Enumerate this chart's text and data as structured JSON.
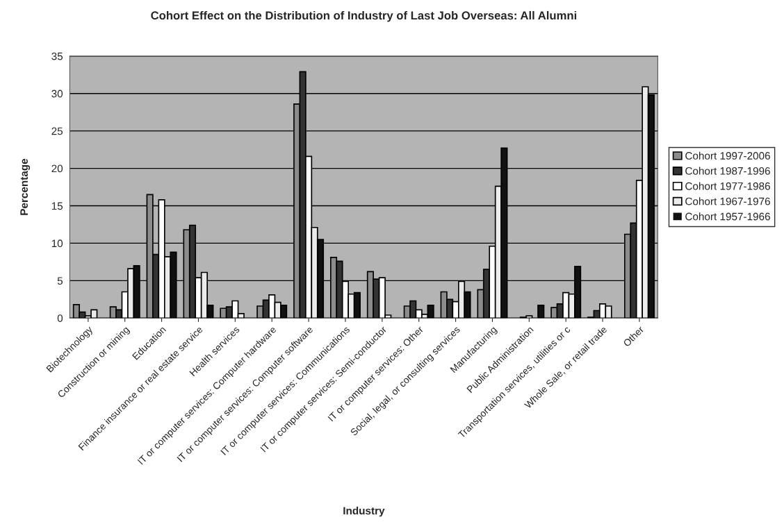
{
  "chart_data": {
    "type": "bar",
    "title": "Cohort Effect on the Distribution of Industry of Last Job Overseas: All Alumni",
    "xlabel": "Industry",
    "ylabel": "Percentage",
    "categories": [
      "Biotechnology",
      "Construction or mining",
      "Education",
      "Finance insurance or real estate service",
      "Health services",
      "IT or computer services: Computer hardware",
      "IT or computer services: Computer software",
      "IT or computer services: Communications",
      "IT or computer services: Semi-conductor",
      "IT or computer services: Other",
      "Social, legal, or consulting services",
      "Manufacturing",
      "Public Administration",
      "Transportation services, utilities or c",
      "Whole Sale, or retail trade",
      "Other"
    ],
    "series": [
      {
        "name": "Cohort 1997-2006",
        "color": "#8c8c8c",
        "values": [
          1.8,
          1.5,
          16.5,
          11.8,
          1.3,
          1.6,
          28.6,
          8.1,
          6.2,
          1.6,
          3.5,
          3.8,
          0,
          1.4,
          0.1,
          11.2
        ]
      },
      {
        "name": "Cohort 1987-1996",
        "color": "#333333",
        "values": [
          0.8,
          1.1,
          8.5,
          12.4,
          1.5,
          2.4,
          32.9,
          7.6,
          5.2,
          2.3,
          2.5,
          6.5,
          0.1,
          1.9,
          1.0,
          12.7
        ]
      },
      {
        "name": "Cohort 1977-1986",
        "color": "#ffffff",
        "values": [
          0.3,
          3.5,
          15.8,
          5.4,
          2.3,
          3.1,
          21.6,
          4.9,
          5.4,
          1.1,
          2.2,
          9.6,
          0.3,
          3.4,
          1.9,
          18.4
        ]
      },
      {
        "name": "Cohort 1967-1976",
        "color": "#ebebeb",
        "values": [
          1.1,
          6.6,
          8.2,
          6.1,
          0.6,
          2.1,
          12.1,
          3.2,
          0.4,
          0.5,
          4.9,
          17.6,
          0,
          3.2,
          1.6,
          30.9
        ]
      },
      {
        "name": "Cohort 1957-1966",
        "color": "#111111",
        "values": [
          0,
          7.0,
          8.8,
          1.7,
          0,
          1.7,
          10.5,
          3.4,
          0,
          1.7,
          3.5,
          22.7,
          1.7,
          6.9,
          0,
          29.8
        ]
      }
    ],
    "ylim": [
      0,
      35
    ],
    "yticks": [
      0,
      5,
      10,
      15,
      20,
      25,
      30,
      35
    ],
    "grid": "y",
    "legend": "right"
  }
}
